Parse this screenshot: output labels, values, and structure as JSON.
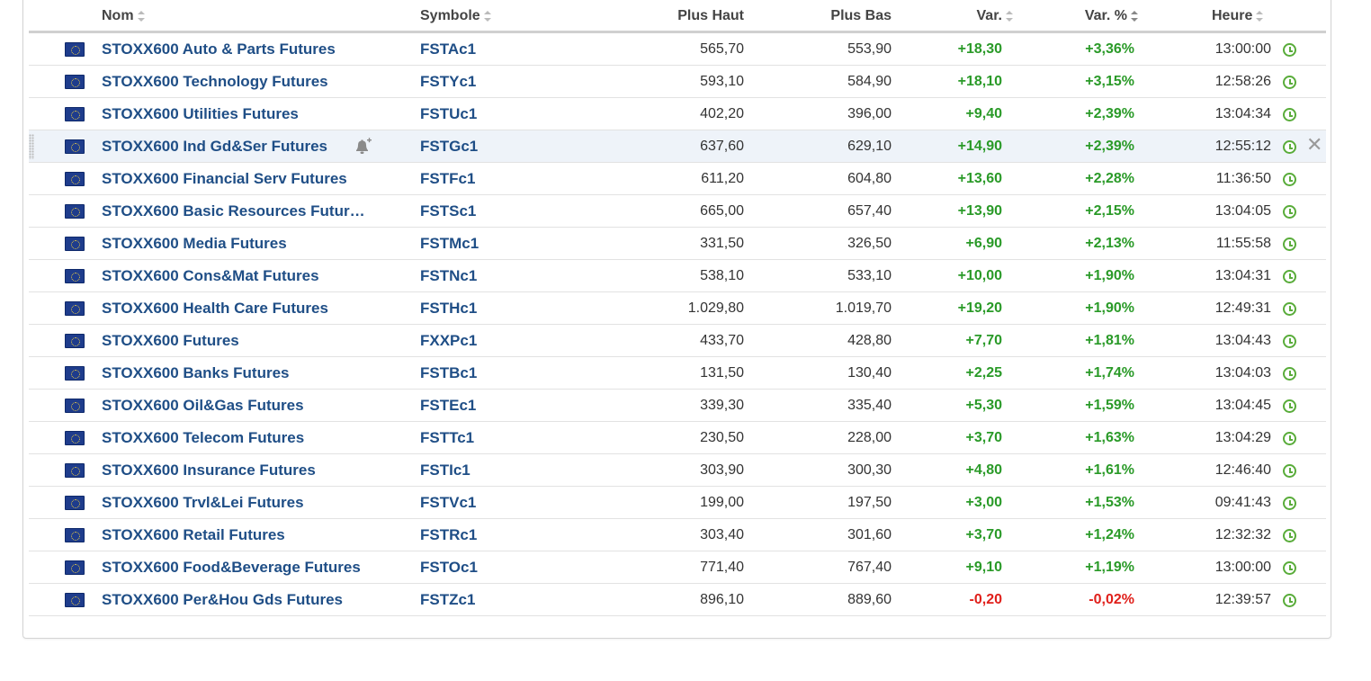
{
  "columns": {
    "name": "Nom",
    "symbol": "Symbole",
    "high": "Plus Haut",
    "low": "Plus Bas",
    "change": "Var.",
    "change_pct": "Var. %",
    "time": "Heure"
  },
  "colors": {
    "link": "#1f4e86",
    "up": "#2a9a28",
    "down": "#e0201b",
    "clock": "#59ac3a"
  },
  "rows": [
    {
      "name": "STOXX600 Auto & Parts Futures",
      "symbol": "FSTAc1",
      "high": "565,70",
      "low": "553,90",
      "change": "+18,30",
      "change_pct": "+3,36%",
      "time": "13:00:00",
      "dir": "up"
    },
    {
      "name": "STOXX600 Technology Futures",
      "symbol": "FSTYc1",
      "high": "593,10",
      "low": "584,90",
      "change": "+18,10",
      "change_pct": "+3,15%",
      "time": "12:58:26",
      "dir": "up"
    },
    {
      "name": "STOXX600 Utilities Futures",
      "symbol": "FSTUc1",
      "high": "402,20",
      "low": "396,00",
      "change": "+9,40",
      "change_pct": "+2,39%",
      "time": "13:04:34",
      "dir": "up"
    },
    {
      "name": "STOXX600 Ind Gd&Ser Futures",
      "symbol": "FSTGc1",
      "high": "637,60",
      "low": "629,10",
      "change": "+14,90",
      "change_pct": "+2,39%",
      "time": "12:55:12",
      "dir": "up",
      "hovered": true
    },
    {
      "name": "STOXX600 Financial Serv Futures",
      "symbol": "FSTFc1",
      "high": "611,20",
      "low": "604,80",
      "change": "+13,60",
      "change_pct": "+2,28%",
      "time": "11:36:50",
      "dir": "up"
    },
    {
      "name": "STOXX600 Basic Resources Futur…",
      "symbol": "FSTSc1",
      "high": "665,00",
      "low": "657,40",
      "change": "+13,90",
      "change_pct": "+2,15%",
      "time": "13:04:05",
      "dir": "up"
    },
    {
      "name": "STOXX600 Media Futures",
      "symbol": "FSTMc1",
      "high": "331,50",
      "low": "326,50",
      "change": "+6,90",
      "change_pct": "+2,13%",
      "time": "11:55:58",
      "dir": "up"
    },
    {
      "name": "STOXX600 Cons&Mat Futures",
      "symbol": "FSTNc1",
      "high": "538,10",
      "low": "533,10",
      "change": "+10,00",
      "change_pct": "+1,90%",
      "time": "13:04:31",
      "dir": "up"
    },
    {
      "name": "STOXX600 Health Care Futures",
      "symbol": "FSTHc1",
      "high": "1.029,80",
      "low": "1.019,70",
      "change": "+19,20",
      "change_pct": "+1,90%",
      "time": "12:49:31",
      "dir": "up"
    },
    {
      "name": "STOXX600 Futures",
      "symbol": "FXXPc1",
      "high": "433,70",
      "low": "428,80",
      "change": "+7,70",
      "change_pct": "+1,81%",
      "time": "13:04:43",
      "dir": "up"
    },
    {
      "name": "STOXX600 Banks Futures",
      "symbol": "FSTBc1",
      "high": "131,50",
      "low": "130,40",
      "change": "+2,25",
      "change_pct": "+1,74%",
      "time": "13:04:03",
      "dir": "up"
    },
    {
      "name": "STOXX600 Oil&Gas Futures",
      "symbol": "FSTEc1",
      "high": "339,30",
      "low": "335,40",
      "change": "+5,30",
      "change_pct": "+1,59%",
      "time": "13:04:45",
      "dir": "up"
    },
    {
      "name": "STOXX600 Telecom Futures",
      "symbol": "FSTTc1",
      "high": "230,50",
      "low": "228,00",
      "change": "+3,70",
      "change_pct": "+1,63%",
      "time": "13:04:29",
      "dir": "up"
    },
    {
      "name": "STOXX600 Insurance Futures",
      "symbol": "FSTIc1",
      "high": "303,90",
      "low": "300,30",
      "change": "+4,80",
      "change_pct": "+1,61%",
      "time": "12:46:40",
      "dir": "up"
    },
    {
      "name": "STOXX600 Trvl&Lei Futures",
      "symbol": "FSTVc1",
      "high": "199,00",
      "low": "197,50",
      "change": "+3,00",
      "change_pct": "+1,53%",
      "time": "09:41:43",
      "dir": "up"
    },
    {
      "name": "STOXX600 Retail Futures",
      "symbol": "FSTRc1",
      "high": "303,40",
      "low": "301,60",
      "change": "+3,70",
      "change_pct": "+1,24%",
      "time": "12:32:32",
      "dir": "up"
    },
    {
      "name": "STOXX600 Food&Beverage Futures",
      "symbol": "FSTOc1",
      "high": "771,40",
      "low": "767,40",
      "change": "+9,10",
      "change_pct": "+1,19%",
      "time": "13:00:00",
      "dir": "up"
    },
    {
      "name": "STOXX600 Per&Hou Gds Futures",
      "symbol": "FSTZc1",
      "high": "896,10",
      "low": "889,60",
      "change": "-0,20",
      "change_pct": "-0,02%",
      "time": "12:39:57",
      "dir": "down"
    }
  ]
}
